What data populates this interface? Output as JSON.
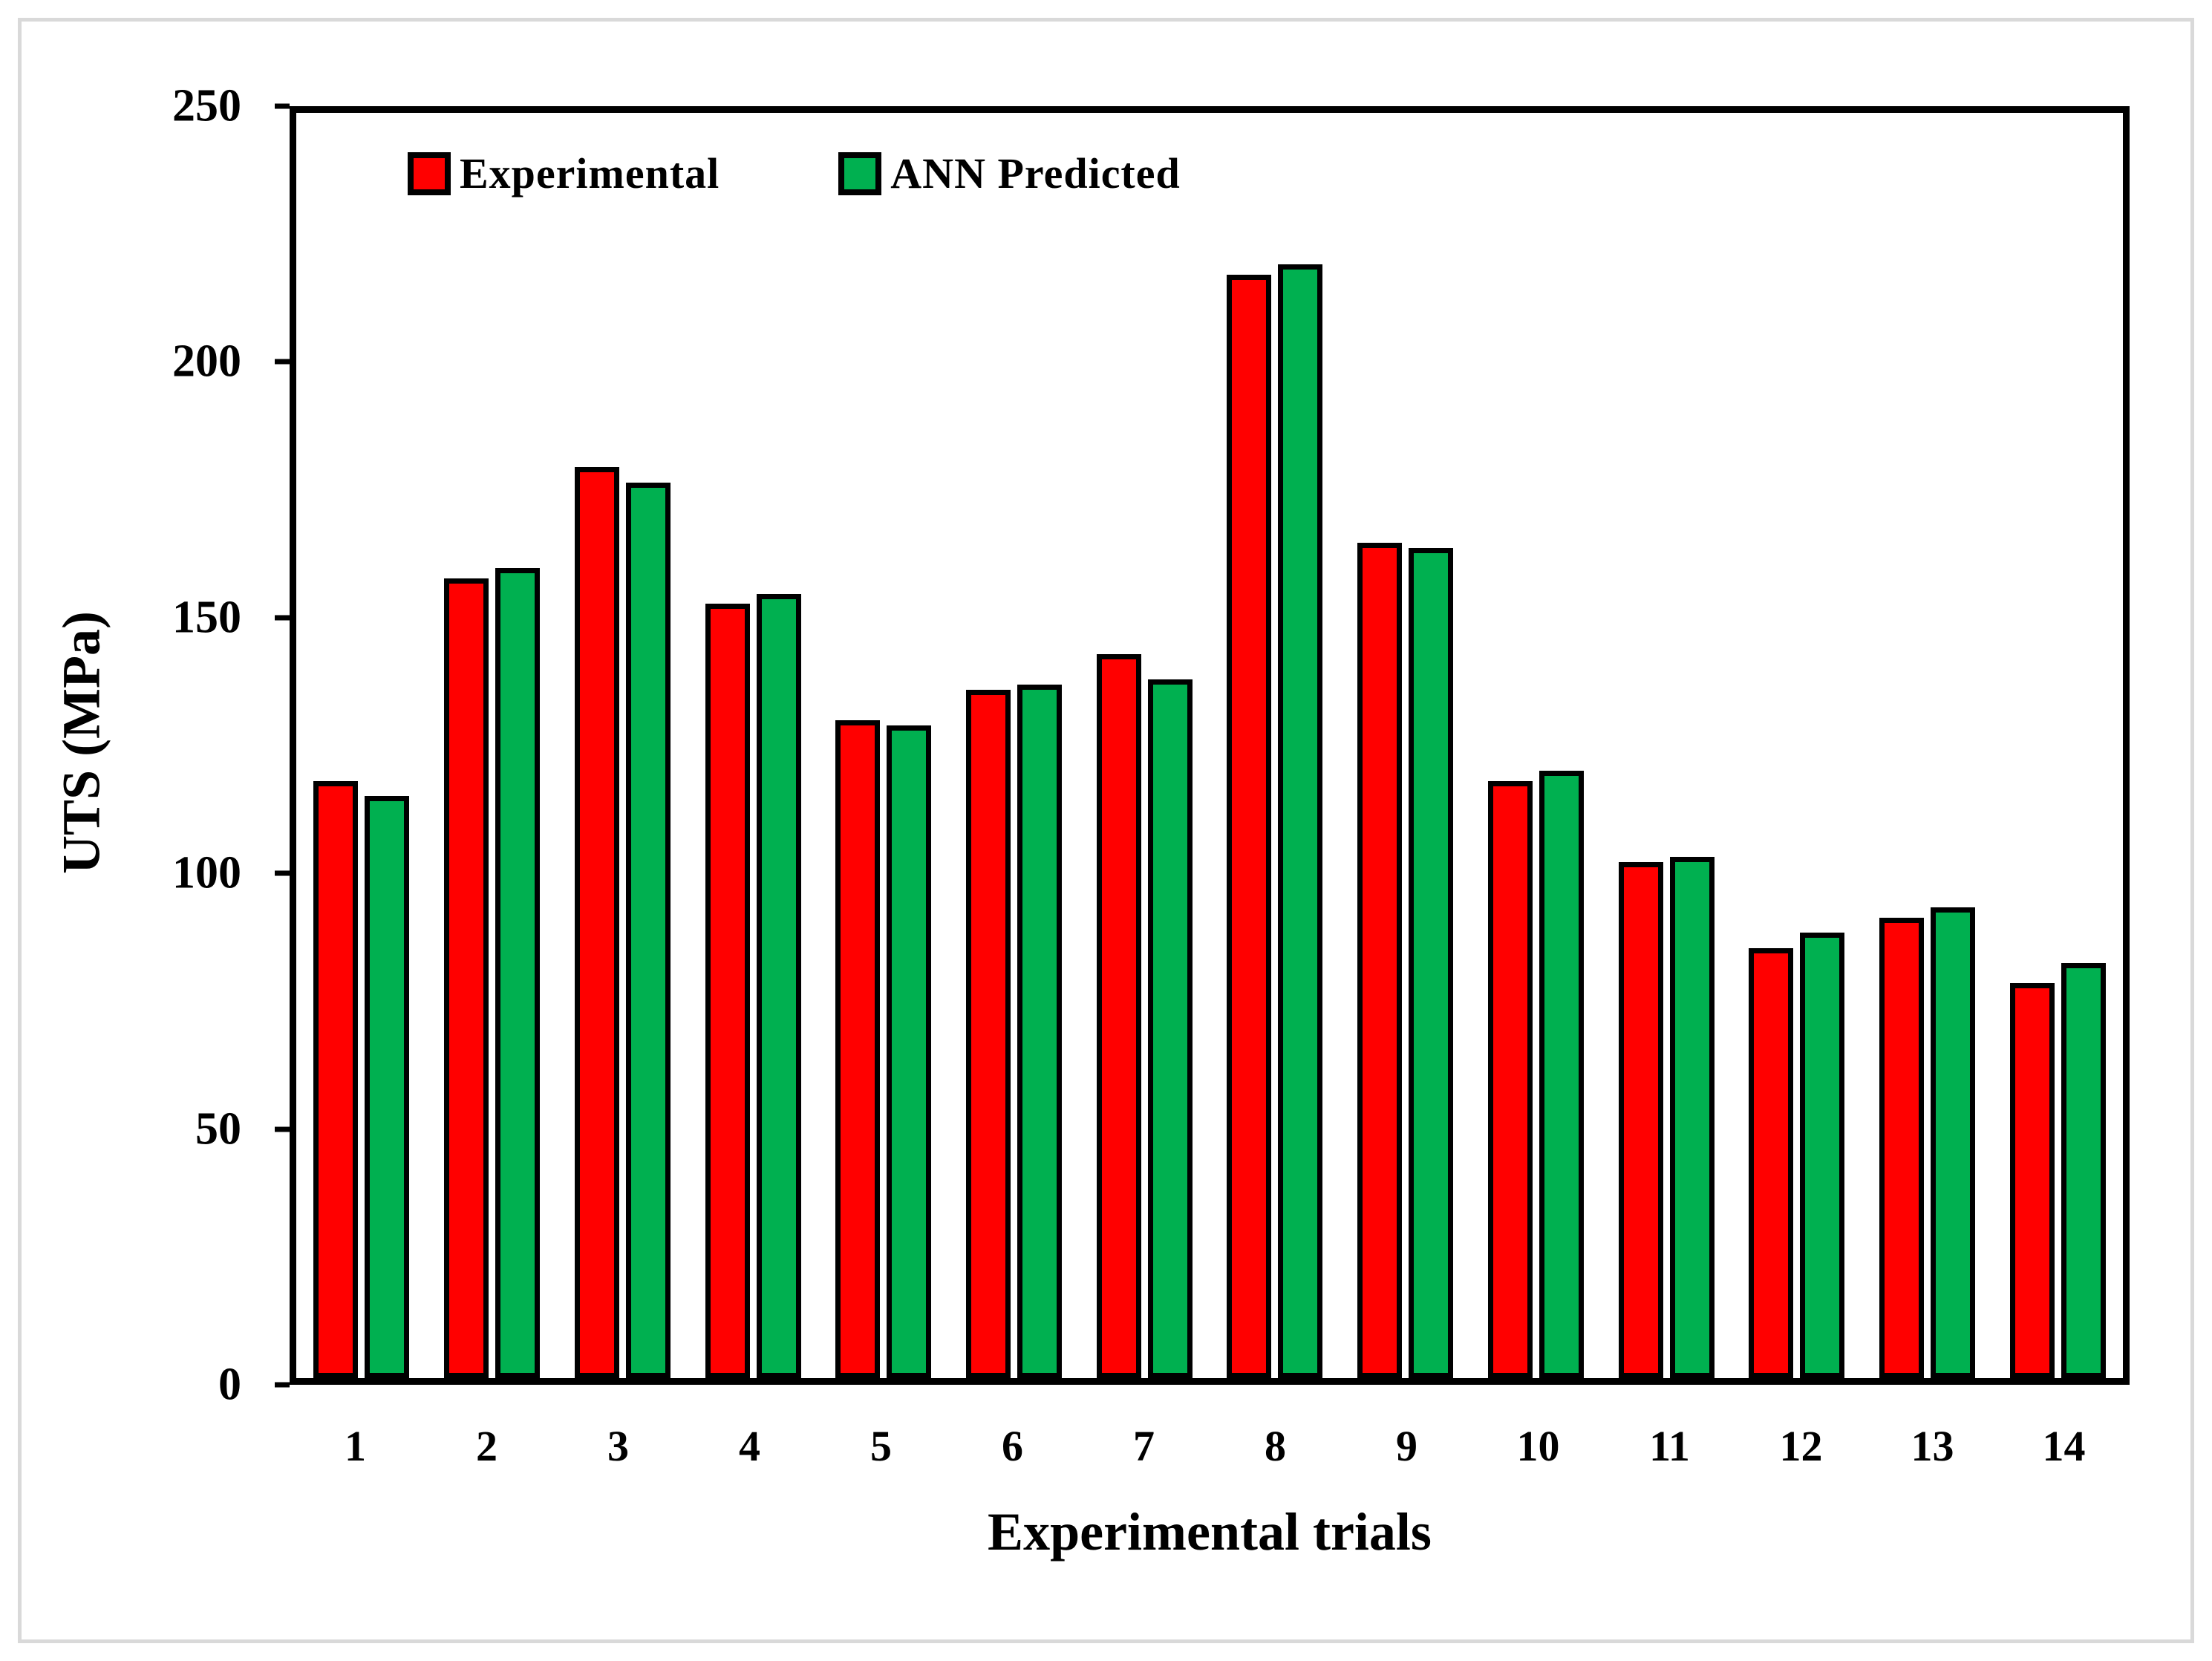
{
  "chart_data": {
    "type": "bar",
    "title": "",
    "xlabel": "Experimental trials",
    "ylabel": "UTS (MPa)",
    "ylim": [
      0,
      250
    ],
    "yticks": [
      0,
      50,
      100,
      150,
      200,
      250
    ],
    "grid": false,
    "legend_position": "top-left-inside",
    "bar_border_color": "#000000",
    "categories": [
      "1",
      "2",
      "3",
      "4",
      "5",
      "6",
      "7",
      "8",
      "9",
      "10",
      "11",
      "12",
      "13",
      "14"
    ],
    "series": [
      {
        "name": "Experimental",
        "color": "#ff0000",
        "values": [
          118,
          158,
          180,
          153,
          130,
          136,
          143,
          218,
          165,
          118,
          102,
          85,
          91,
          78
        ]
      },
      {
        "name": "ANN Predicted",
        "color": "#00b050",
        "values": [
          115,
          160,
          177,
          155,
          129,
          137,
          138,
          220,
          164,
          120,
          103,
          88,
          93,
          82
        ]
      }
    ]
  },
  "frame_color": "#d9d9d9"
}
